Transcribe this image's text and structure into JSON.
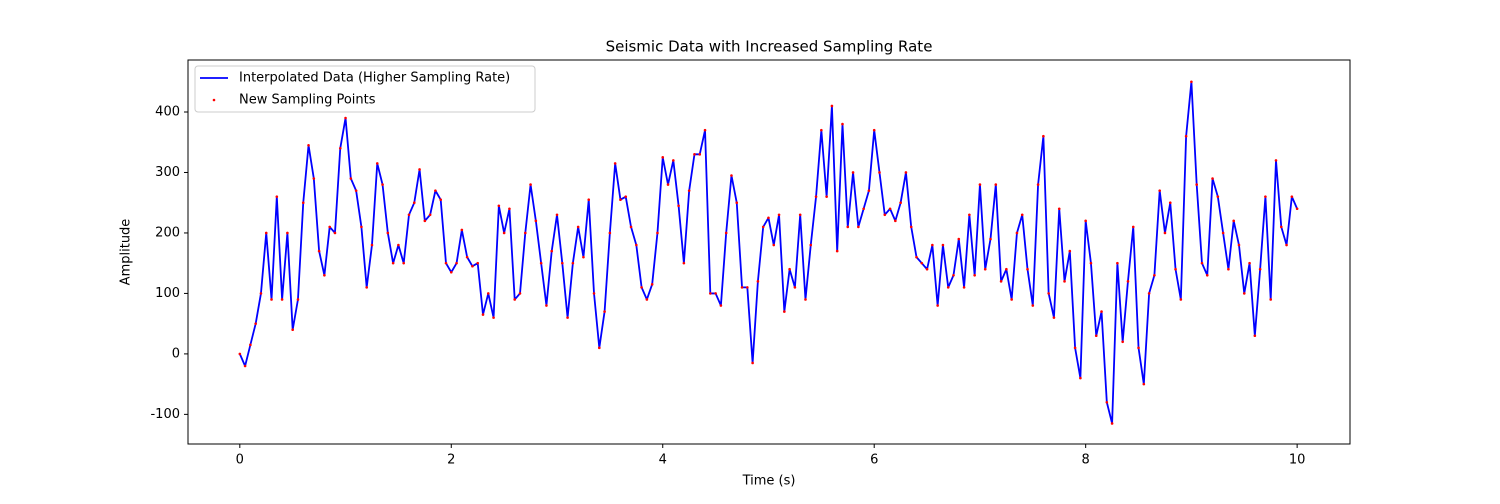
{
  "chart_data": {
    "type": "line",
    "title": "Seismic Data with Increased Sampling Rate",
    "xlabel": "Time (s)",
    "ylabel": "Amplitude",
    "x": [
      0,
      0.05,
      0.1,
      0.15,
      0.2,
      0.25,
      0.3,
      0.35,
      0.4,
      0.45,
      0.5,
      0.55,
      0.6,
      0.65,
      0.7,
      0.75,
      0.8,
      0.85,
      0.9,
      0.95,
      1,
      1.05,
      1.1,
      1.15,
      1.2,
      1.25,
      1.3,
      1.35,
      1.4,
      1.45,
      1.5,
      1.55,
      1.6,
      1.65,
      1.7,
      1.75,
      1.8,
      1.85,
      1.9,
      1.95,
      2,
      2.05,
      2.1,
      2.15,
      2.2,
      2.25,
      2.3,
      2.35,
      2.4,
      2.45,
      2.5,
      2.55,
      2.6,
      2.65,
      2.7,
      2.75,
      2.8,
      2.85,
      2.9,
      2.95,
      3,
      3.05,
      3.1,
      3.15,
      3.2,
      3.25,
      3.3,
      3.35,
      3.4,
      3.45,
      3.5,
      3.55,
      3.6,
      3.65,
      3.7,
      3.75,
      3.8,
      3.85,
      3.9,
      3.95,
      4,
      4.05,
      4.1,
      4.15,
      4.2,
      4.25,
      4.3,
      4.35,
      4.4,
      4.45,
      4.5,
      4.55,
      4.6,
      4.65,
      4.7,
      4.75,
      4.8,
      4.85,
      4.9,
      4.95,
      5,
      5.05,
      5.1,
      5.15,
      5.2,
      5.25,
      5.3,
      5.35,
      5.4,
      5.45,
      5.5,
      5.55,
      5.6,
      5.65,
      5.7,
      5.75,
      5.8,
      5.85,
      5.9,
      5.95,
      6,
      6.05,
      6.1,
      6.15,
      6.2,
      6.25,
      6.3,
      6.35,
      6.4,
      6.45,
      6.5,
      6.55,
      6.6,
      6.65,
      6.7,
      6.75,
      6.8,
      6.85,
      6.9,
      6.95,
      7,
      7.05,
      7.1,
      7.15,
      7.2,
      7.25,
      7.3,
      7.35,
      7.4,
      7.45,
      7.5,
      7.55,
      7.6,
      7.65,
      7.7,
      7.75,
      7.8,
      7.85,
      7.9,
      7.95,
      8,
      8.05,
      8.1,
      8.15,
      8.2,
      8.25,
      8.3,
      8.35,
      8.4,
      8.45,
      8.5,
      8.55,
      8.6,
      8.65,
      8.7,
      8.75,
      8.8,
      8.85,
      8.9,
      8.95,
      9,
      9.05,
      9.1,
      9.15,
      9.2,
      9.25,
      9.3,
      9.35,
      9.4,
      9.45,
      9.5,
      9.55,
      9.6,
      9.65,
      9.7,
      9.75,
      9.8,
      9.85,
      9.9,
      9.95,
      10
    ],
    "series": [
      {
        "name": "Interpolated Data (Higher Sampling Rate)",
        "color": "#0000ff",
        "style": "line",
        "values": [
          0,
          -20,
          15,
          50,
          100,
          200,
          90,
          260,
          90,
          200,
          40,
          90,
          250,
          345,
          290,
          170,
          130,
          210,
          200,
          340,
          390,
          290,
          270,
          210,
          110,
          180,
          315,
          280,
          200,
          150,
          180,
          150,
          230,
          250,
          305,
          220,
          230,
          270,
          255,
          150,
          135,
          150,
          205,
          160,
          145,
          150,
          65,
          100,
          60,
          245,
          200,
          240,
          90,
          100,
          200,
          280,
          220,
          150,
          80,
          170,
          230,
          150,
          60,
          150,
          210,
          160,
          255,
          100,
          10,
          70,
          200,
          315,
          255,
          260,
          210,
          180,
          110,
          90,
          115,
          200,
          325,
          280,
          320,
          245,
          150,
          270,
          330,
          330,
          370,
          100,
          100,
          80,
          200,
          295,
          250,
          110,
          110,
          -15,
          120,
          210,
          225,
          180,
          230,
          70,
          140,
          110,
          230,
          90,
          180,
          260,
          370,
          260,
          410,
          170,
          380,
          210,
          300,
          210,
          240,
          270,
          370,
          300,
          230,
          240,
          220,
          250,
          300,
          210,
          160,
          150,
          140,
          180,
          80,
          180,
          110,
          130,
          190,
          110,
          230,
          130,
          280,
          140,
          190,
          280,
          120,
          140,
          90,
          200,
          230,
          140,
          80,
          280,
          360,
          100,
          60,
          240,
          120,
          170,
          10,
          -40,
          220,
          150,
          30,
          70,
          -80,
          -115,
          150,
          20,
          120,
          210,
          10,
          -50,
          100,
          130,
          270,
          200,
          250,
          140,
          90,
          360,
          450,
          280,
          150,
          130,
          290,
          260,
          200,
          140,
          220,
          180,
          100,
          150,
          30,
          140,
          260,
          90,
          320,
          210,
          180,
          260,
          240
        ]
      },
      {
        "name": "New Sampling Points",
        "color": "#ff0000",
        "style": "points",
        "values": [
          0,
          -20,
          15,
          50,
          100,
          200,
          90,
          260,
          90,
          200,
          40,
          90,
          250,
          345,
          290,
          170,
          130,
          210,
          200,
          340,
          390,
          290,
          270,
          210,
          110,
          180,
          315,
          280,
          200,
          150,
          180,
          150,
          230,
          250,
          305,
          220,
          230,
          270,
          255,
          150,
          135,
          150,
          205,
          160,
          145,
          150,
          65,
          100,
          60,
          245,
          200,
          240,
          90,
          100,
          200,
          280,
          220,
          150,
          80,
          170,
          230,
          150,
          60,
          150,
          210,
          160,
          255,
          100,
          10,
          70,
          200,
          315,
          255,
          260,
          210,
          180,
          110,
          90,
          115,
          200,
          325,
          280,
          320,
          245,
          150,
          270,
          330,
          330,
          370,
          100,
          100,
          80,
          200,
          295,
          250,
          110,
          110,
          -15,
          120,
          210,
          225,
          180,
          230,
          70,
          140,
          110,
          230,
          90,
          180,
          260,
          370,
          260,
          410,
          170,
          380,
          210,
          300,
          210,
          240,
          270,
          370,
          300,
          230,
          240,
          220,
          250,
          300,
          210,
          160,
          150,
          140,
          180,
          80,
          180,
          110,
          130,
          190,
          110,
          230,
          130,
          280,
          140,
          190,
          280,
          120,
          140,
          90,
          200,
          230,
          140,
          80,
          280,
          360,
          100,
          60,
          240,
          120,
          170,
          10,
          -40,
          220,
          150,
          30,
          70,
          -80,
          -115,
          150,
          20,
          120,
          210,
          10,
          -50,
          100,
          130,
          270,
          200,
          250,
          140,
          90,
          360,
          450,
          280,
          150,
          130,
          290,
          260,
          200,
          140,
          220,
          180,
          100,
          150,
          30,
          140,
          260,
          90,
          320,
          210,
          180,
          260,
          240
        ]
      }
    ],
    "xlim": [
      -0.49,
      10.5
    ],
    "ylim": [
      -149,
      486
    ],
    "xticks": [
      0,
      2,
      4,
      6,
      8,
      10
    ],
    "yticks": [
      -100,
      0,
      100,
      200,
      300,
      400
    ],
    "legend": "upper left"
  }
}
